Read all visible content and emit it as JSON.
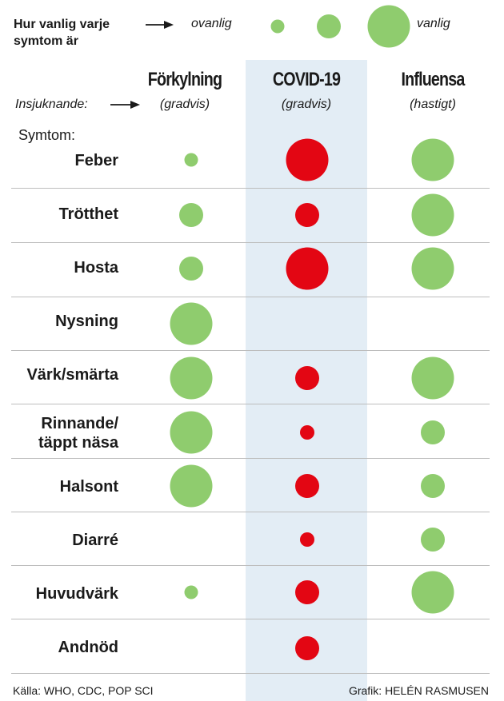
{
  "legend": {
    "question": "Hur vanlig varje symtom är",
    "question_line1": "Hur vanlig varje",
    "question_line2": "symtom är",
    "min_label": "ovanlig",
    "max_label": "vanlig",
    "scale_levels": [
      1,
      2,
      3
    ]
  },
  "onset_label": "Insjuknande:",
  "symptoms_label": "Symtom:",
  "columns": [
    {
      "name": "Förkylning",
      "onset": "(gradvis)",
      "color": "#8fcc6e"
    },
    {
      "name": "COVID-19",
      "onset": "(gradvis)",
      "color": "#e30613"
    },
    {
      "name": "Influensa",
      "onset": "(hastigt)",
      "color": "#8fcc6e"
    }
  ],
  "rows": [
    {
      "symptom": "Feber",
      "forkylning": 1,
      "covid": 3,
      "influensa": 3
    },
    {
      "symptom": "Trötthet",
      "forkylning": 2,
      "covid": 2,
      "influensa": 3
    },
    {
      "symptom": "Hosta",
      "forkylning": 2,
      "covid": 3,
      "influensa": 3
    },
    {
      "symptom": "Nysning",
      "forkylning": 3,
      "covid": 0,
      "influensa": 0
    },
    {
      "symptom": "Värk/smärta",
      "forkylning": 3,
      "covid": 2,
      "influensa": 3
    },
    {
      "symptom_line1": "Rinnande/",
      "symptom_line2": "täppt näsa",
      "forkylning": 3,
      "covid": 1,
      "influensa": 2
    },
    {
      "symptom": "Halsont",
      "forkylning": 3,
      "covid": 2,
      "influensa": 2
    },
    {
      "symptom": "Diarré",
      "forkylning": 0,
      "covid": 1,
      "influensa": 2
    },
    {
      "symptom": "Huvudvärk",
      "forkylning": 1,
      "covid": 2,
      "influensa": 3
    },
    {
      "symptom": "Andnöd",
      "forkylning": 0,
      "covid": 2,
      "influensa": 0
    }
  ],
  "footer": {
    "source": "Källa: WHO, CDC, POP SCI",
    "credit": "Grafik: HELÉN RASMUSEN"
  }
}
